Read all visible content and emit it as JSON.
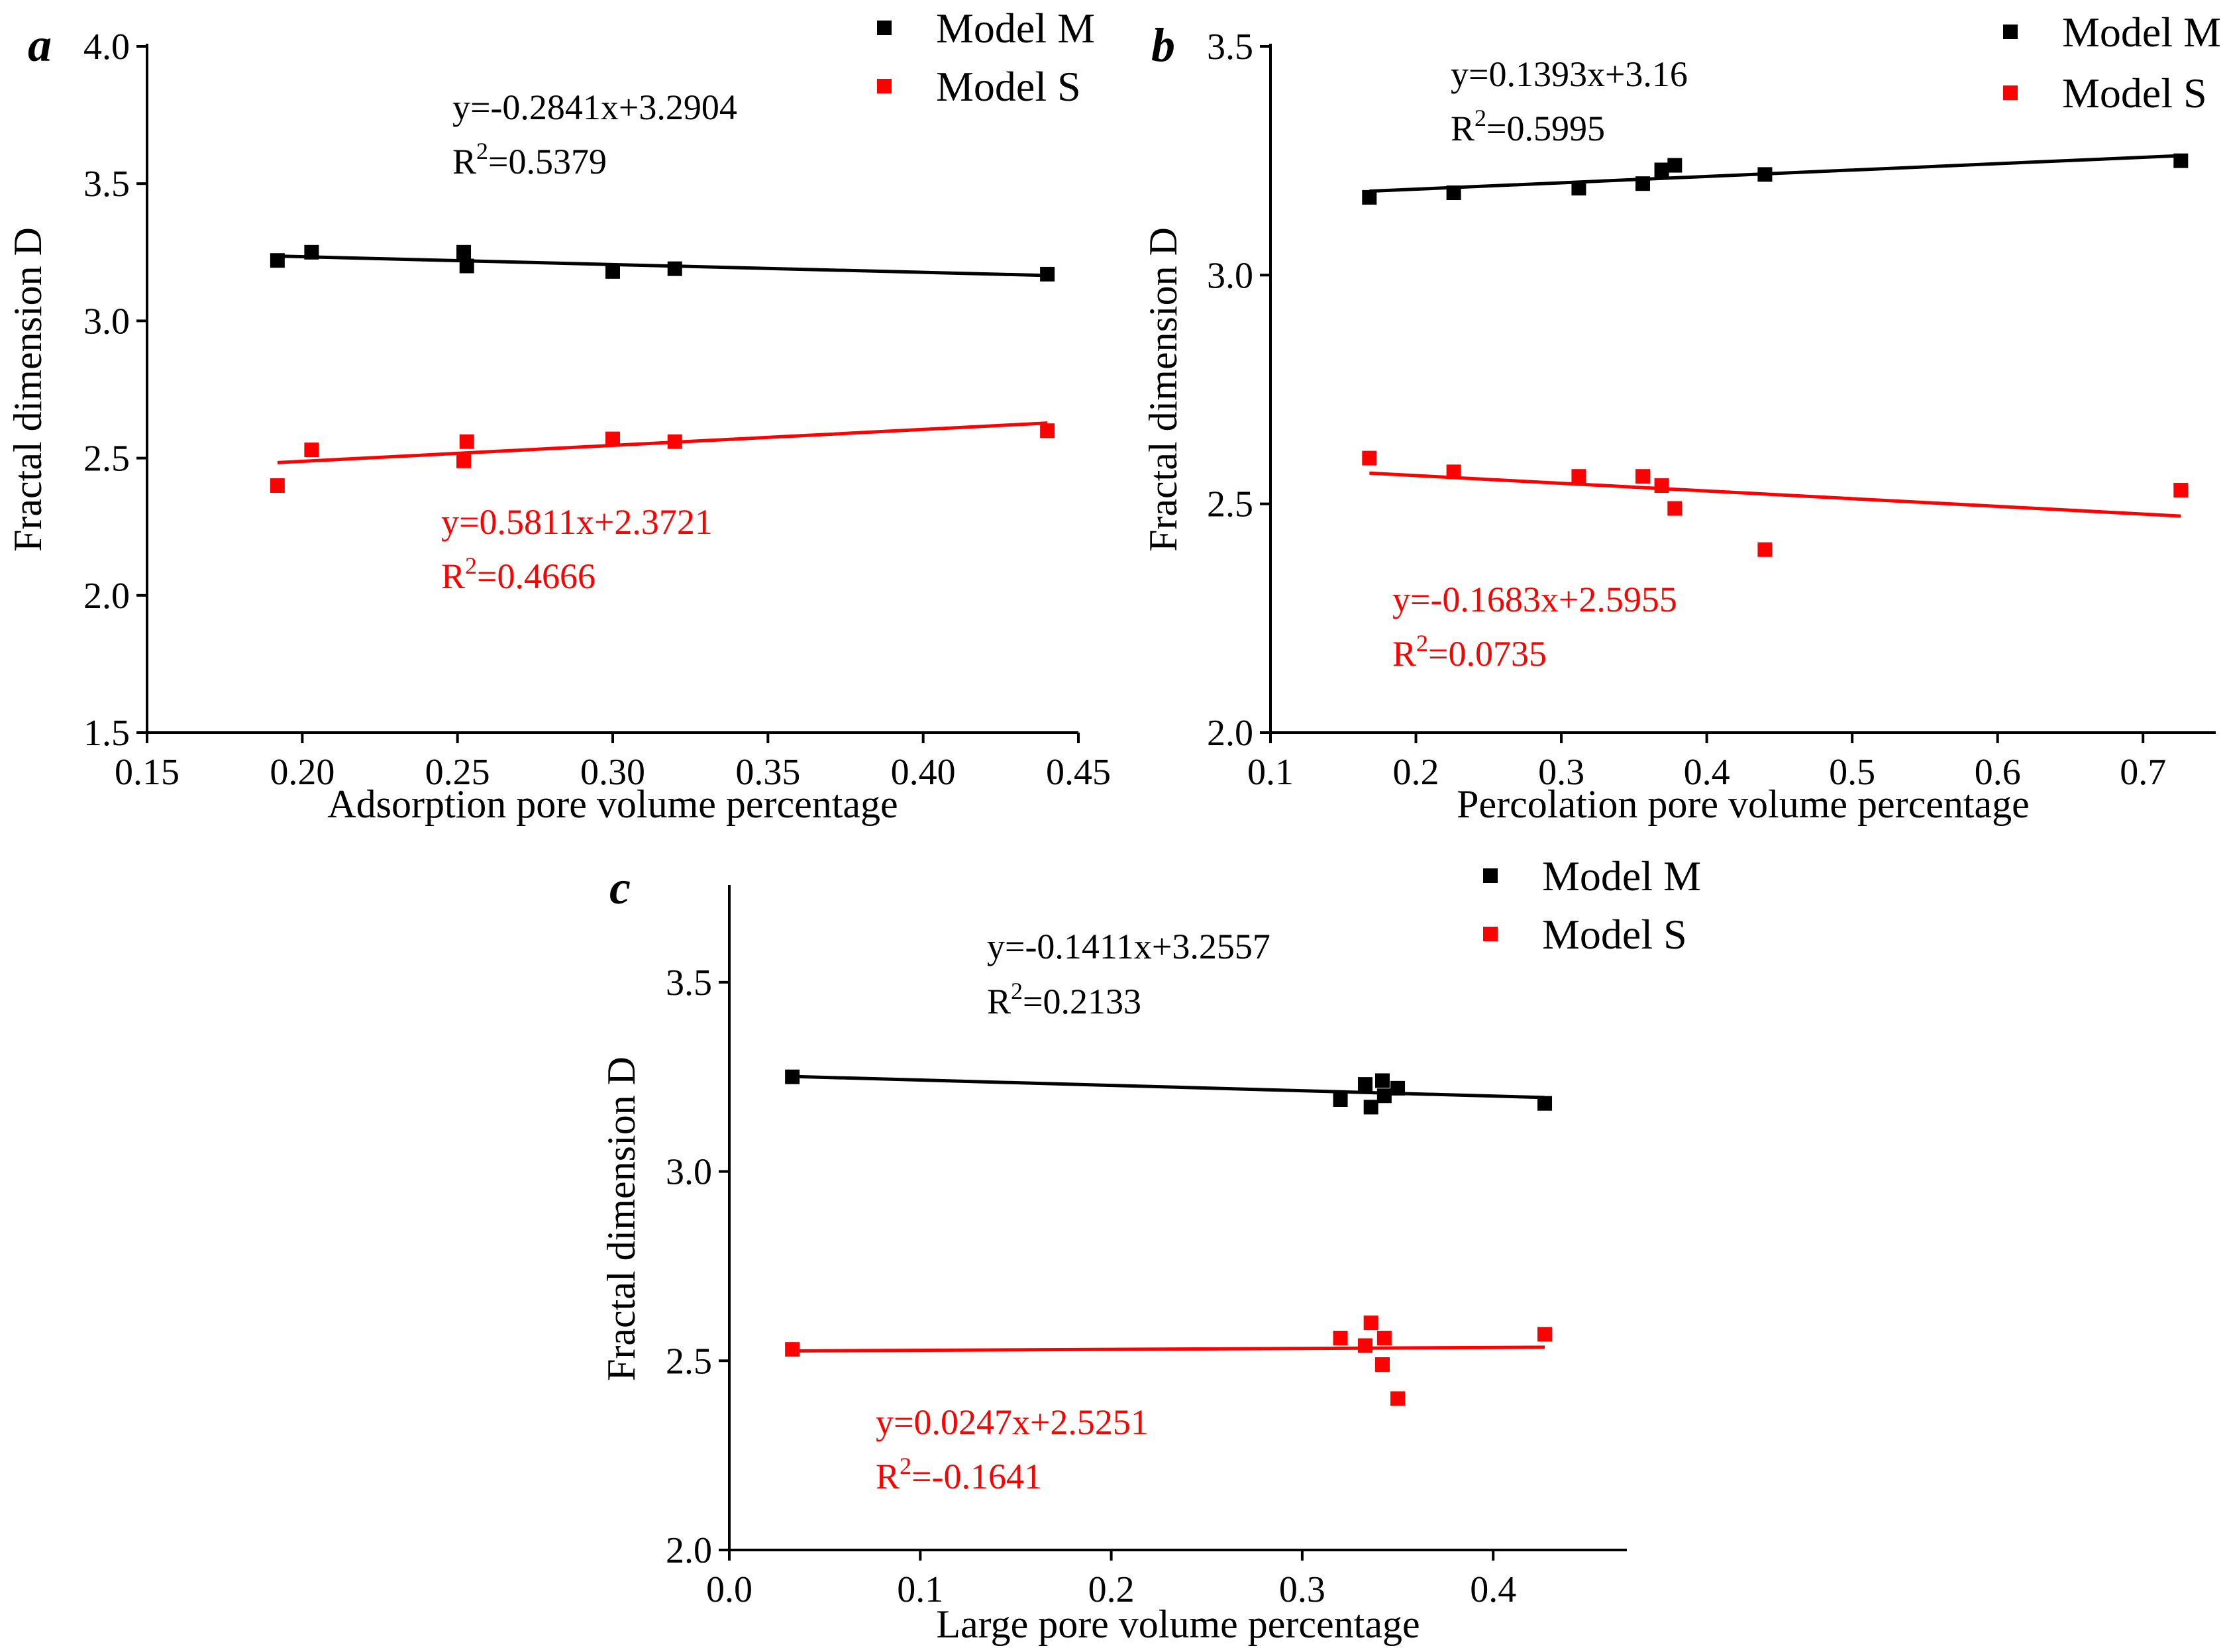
{
  "chart_data": [
    {
      "type": "scatter",
      "panel": "a",
      "xlabel": "Adsorption pore volume percentage",
      "ylabel": "Fractal dimension D",
      "xlim": [
        0.15,
        0.45
      ],
      "ylim": [
        1.5,
        4.0
      ],
      "xticks": [
        0.15,
        0.2,
        0.25,
        0.3,
        0.35,
        0.4,
        0.45
      ],
      "xtick_labels": [
        "0.15",
        "0.20",
        "0.25",
        "0.30",
        "0.35",
        "0.40",
        "0.45"
      ],
      "yticks": [
        1.5,
        2.0,
        2.5,
        3.0,
        3.5,
        4.0
      ],
      "ytick_labels": [
        "1.5",
        "2.0",
        "2.5",
        "3.0",
        "3.5",
        "4.0"
      ],
      "legend_position": "top-right",
      "series": [
        {
          "name": "Model M",
          "color": "#000000",
          "x": [
            0.192,
            0.203,
            0.252,
            0.253,
            0.3,
            0.32,
            0.44
          ],
          "y": [
            3.22,
            3.25,
            3.25,
            3.2,
            3.18,
            3.19,
            3.17
          ],
          "fit": {
            "slope": -0.2841,
            "intercept": 3.2904,
            "x_range": [
              0.192,
              0.44
            ]
          },
          "equation": "y=-0.2841x+3.2904",
          "r2_prefix": "R",
          "r2_value": "=0.5379"
        },
        {
          "name": "Model S",
          "color": "#ff0000",
          "x": [
            0.192,
            0.203,
            0.252,
            0.253,
            0.3,
            0.32,
            0.44
          ],
          "y": [
            2.4,
            2.53,
            2.49,
            2.56,
            2.57,
            2.56,
            2.6
          ],
          "fit": {
            "slope": 0.5811,
            "intercept": 2.3721,
            "x_range": [
              0.192,
              0.44
            ]
          },
          "equation": "y=0.5811x+2.3721",
          "r2_prefix": "R",
          "r2_value": "=0.4666"
        }
      ]
    },
    {
      "type": "scatter",
      "panel": "b",
      "xlabel": "Percolation pore volume percentage",
      "ylabel": "Fractal dimension D",
      "xlim": [
        0.1,
        0.75
      ],
      "ylim": [
        2.0,
        3.5
      ],
      "xticks": [
        0.1,
        0.2,
        0.3,
        0.4,
        0.5,
        0.6,
        0.7
      ],
      "xtick_labels": [
        "0.1",
        "0.2",
        "0.3",
        "0.4",
        "0.5",
        "0.6",
        "0.7"
      ],
      "yticks": [
        2.0,
        2.5,
        3.0,
        3.5
      ],
      "ytick_labels": [
        "2.0",
        "2.5",
        "3.0",
        "3.5"
      ],
      "legend_position": "top-right",
      "series": [
        {
          "name": "Model M",
          "color": "#000000",
          "x": [
            0.168,
            0.226,
            0.312,
            0.356,
            0.369,
            0.378,
            0.44,
            0.726
          ],
          "y": [
            3.17,
            3.18,
            3.19,
            3.2,
            3.23,
            3.24,
            3.22,
            3.25
          ],
          "fit": {
            "slope": 0.1393,
            "intercept": 3.16,
            "x_range": [
              0.168,
              0.726
            ]
          },
          "equation": "y=0.1393x+3.16",
          "r2_prefix": "R",
          "r2_value": "=0.5995"
        },
        {
          "name": "Model S",
          "color": "#ff0000",
          "x": [
            0.168,
            0.226,
            0.312,
            0.356,
            0.369,
            0.378,
            0.44,
            0.726
          ],
          "y": [
            2.6,
            2.57,
            2.56,
            2.56,
            2.54,
            2.49,
            2.4,
            2.53
          ],
          "fit": {
            "slope": -0.1683,
            "intercept": 2.5955,
            "x_range": [
              0.168,
              0.726
            ]
          },
          "equation": "y=-0.1683x+2.5955",
          "r2_prefix": "R",
          "r2_value": "=0.0735"
        }
      ]
    },
    {
      "type": "scatter",
      "panel": "c",
      "xlabel": "Large pore volume percentage",
      "ylabel": "Fractal dimension D",
      "xlim": [
        0.0,
        0.47
      ],
      "ylim": [
        2.0,
        3.75
      ],
      "xticks": [
        0.0,
        0.1,
        0.2,
        0.3,
        0.4
      ],
      "xtick_labels": [
        "0.0",
        "0.1",
        "0.2",
        "0.3",
        "0.4"
      ],
      "yticks": [
        2.0,
        2.5,
        3.0,
        3.5
      ],
      "ytick_labels": [
        "2.0",
        "2.5",
        "3.0",
        "3.5"
      ],
      "legend_position": "top-right",
      "series": [
        {
          "name": "Model M",
          "color": "#000000",
          "x": [
            0.033,
            0.32,
            0.333,
            0.336,
            0.342,
            0.343,
            0.35,
            0.427
          ],
          "y": [
            3.25,
            3.19,
            3.23,
            3.17,
            3.24,
            3.2,
            3.22,
            3.18
          ],
          "fit": {
            "slope": -0.1411,
            "intercept": 3.2557,
            "x_range": [
              0.033,
              0.427
            ]
          },
          "equation": "y=-0.1411x+3.2557",
          "r2_prefix": "R",
          "r2_value": "=0.2133"
        },
        {
          "name": "Model S",
          "color": "#ff0000",
          "x": [
            0.033,
            0.32,
            0.333,
            0.336,
            0.342,
            0.343,
            0.35,
            0.427
          ],
          "y": [
            2.53,
            2.56,
            2.54,
            2.6,
            2.49,
            2.56,
            2.4,
            2.57
          ],
          "fit": {
            "slope": 0.0247,
            "intercept": 2.5251,
            "x_range": [
              0.033,
              0.427
            ]
          },
          "equation": "y=0.0247x+2.5251",
          "r2_prefix": "R",
          "r2_value": "=-0.1641"
        }
      ]
    }
  ]
}
